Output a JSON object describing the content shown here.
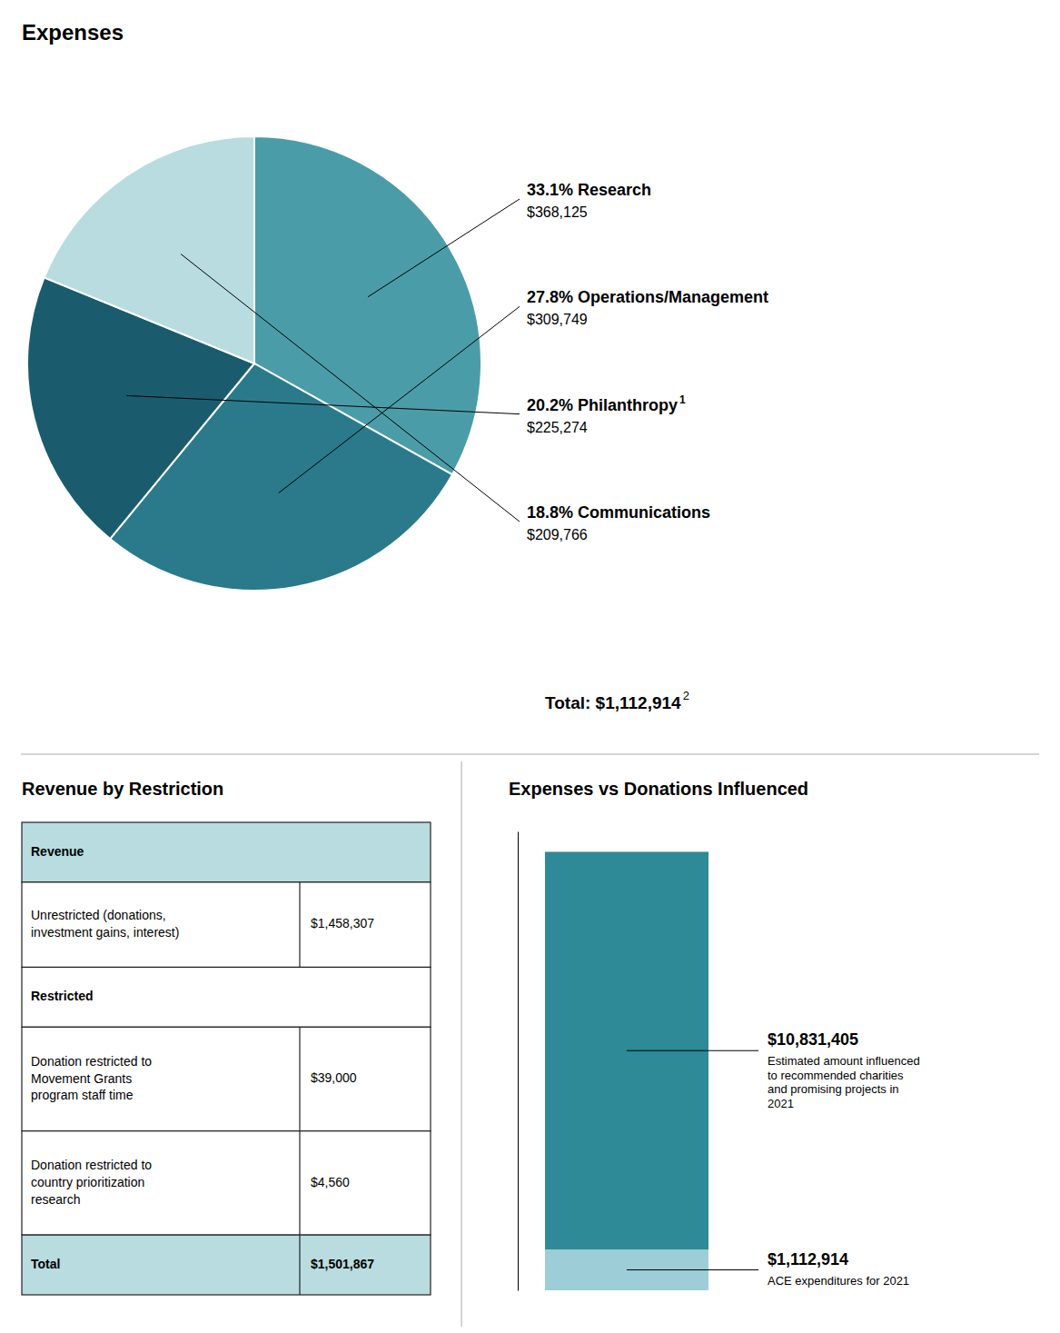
{
  "chart_data": [
    {
      "type": "pie",
      "title": "Expenses",
      "categories": [
        "33.1% Research",
        "27.8% Operations/Management",
        "20.2% Philanthropy",
        "18.8% Communications"
      ],
      "values": [
        33.1,
        27.8,
        20.2,
        18.8
      ],
      "colors": [
        "#4a9da8",
        "#2a7a8c",
        "#1a5c6e",
        "#b8dce0"
      ],
      "sublabels": [
        "$368,125",
        "$309,749",
        "$225,274",
        "$209,766"
      ],
      "footnote_marks": [
        null,
        null,
        "1",
        null
      ],
      "total_label": "Total: $1,112,914",
      "total_footnote": "2"
    },
    {
      "type": "table",
      "title": "Revenue by Restriction",
      "categories": [
        "Revenue",
        "Unrestricted (donations,\ninvestment gains, interest)",
        "Restricted",
        "Donation restricted to\nMovement Grants\nprogram staff time",
        "Donation restricted to\ncountry prioritization\nresearch",
        "Total"
      ],
      "values": [
        null,
        1458307,
        null,
        39000,
        4560,
        1501867
      ],
      "value_labels": [
        null,
        "$1,458,307",
        null,
        "$39,000",
        "$4,560",
        "$1,501,867"
      ],
      "colors": [
        "#b8dce0",
        "#ffffff",
        "#ffffff",
        "#ffffff",
        "#ffffff",
        "#b8dce0"
      ]
    },
    {
      "type": "bar",
      "title": "Expenses vs Donations Influenced",
      "stacked": true,
      "series": [
        {
          "color": "#9dcdd6",
          "values": [
            1112914
          ],
          "value_labels": [
            "$1,112,914"
          ]
        },
        {
          "color": "#2d8a96",
          "values": [
            10831405
          ],
          "value_labels": [
            "$10,831,405"
          ]
        }
      ],
      "annotations": [
        "ACE expenditures for 2021",
        "Estimated amount influenced\nto recommended charities\nand promising projects in\n2021"
      ],
      "ylim": [
        0,
        12500000
      ],
      "tick_labels": false
    }
  ]
}
